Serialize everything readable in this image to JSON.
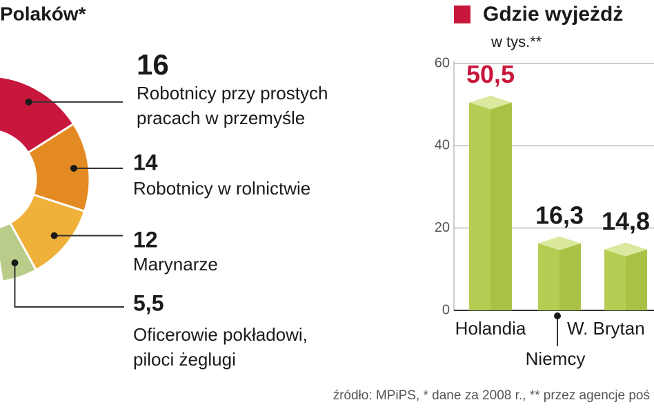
{
  "chart_data": [
    {
      "type": "donut",
      "title": "Polaków*",
      "categories": [
        "Robotnicy przy prostych\npracach w przemyśle",
        "Robotnicy w rolnictwie",
        "Marynarze",
        "Oficerowie pokładowi,\npiloci żeglugi"
      ],
      "values": [
        16,
        14,
        12,
        5.5
      ],
      "value_labels": [
        "16",
        "14",
        "12",
        "5,5"
      ],
      "colors": [
        "#c8173c",
        "#e48a22",
        "#f0b13a",
        "#b9cc8a"
      ]
    },
    {
      "type": "bar",
      "title": "Gdzie wyjeżdż",
      "subtitle": "w tys.**",
      "legend_color": "#c8173c",
      "categories": [
        "Holandia",
        "Niemcy",
        "W. Brytan"
      ],
      "values": [
        50.5,
        16.3,
        14.8
      ],
      "value_labels": [
        "50,5",
        "16,3",
        "14,8"
      ],
      "value_label_colors": [
        "#c8173c",
        "#1a1a1a",
        "#1a1a1a"
      ],
      "color": "#b5cd52",
      "ylim": [
        0,
        60
      ],
      "yticks": [
        0,
        20,
        40,
        60
      ],
      "grid": true
    }
  ],
  "source": "źródło: MPiPS, * dane za 2008 r., ** przez agencje poś"
}
